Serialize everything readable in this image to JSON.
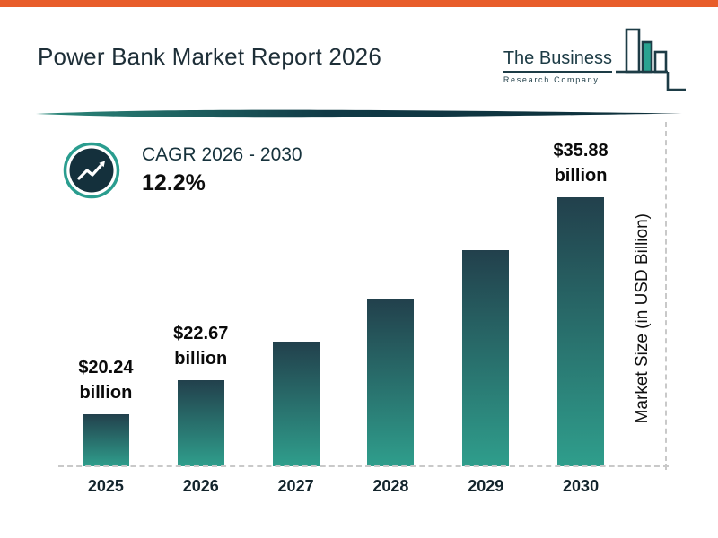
{
  "header": {
    "title": "Power Bank Market Report 2026"
  },
  "logo": {
    "line1": "The Business",
    "line2": "Research Company"
  },
  "cagr": {
    "label": "CAGR 2026 - 2030",
    "value": "12.2%"
  },
  "chart_data": {
    "type": "bar",
    "title": "Power Bank Market Report 2026",
    "categories": [
      "2025",
      "2026",
      "2027",
      "2028",
      "2029",
      "2030"
    ],
    "values": [
      20.24,
      22.67,
      25.44,
      28.54,
      32.02,
      35.88
    ],
    "bar_labels": [
      "$20.24 billion",
      "$22.67 billion",
      null,
      null,
      null,
      "$35.88 billion"
    ],
    "xlabel": "",
    "ylabel": "Market Size (in USD Billion)",
    "ylim": [
      16.5,
      36.5
    ],
    "grid": false,
    "legend": false,
    "bar_gradient": [
      "#22404c",
      "#2f9e8c"
    ]
  },
  "colors": {
    "top_strip": "#e85d2a",
    "accent_teal": "#2a9d8f",
    "dark_navy": "#14303c",
    "logo_ink": "#1d3c46",
    "bar_top": "#22404c",
    "bar_bottom": "#2f9e8c",
    "text": "#111111"
  }
}
